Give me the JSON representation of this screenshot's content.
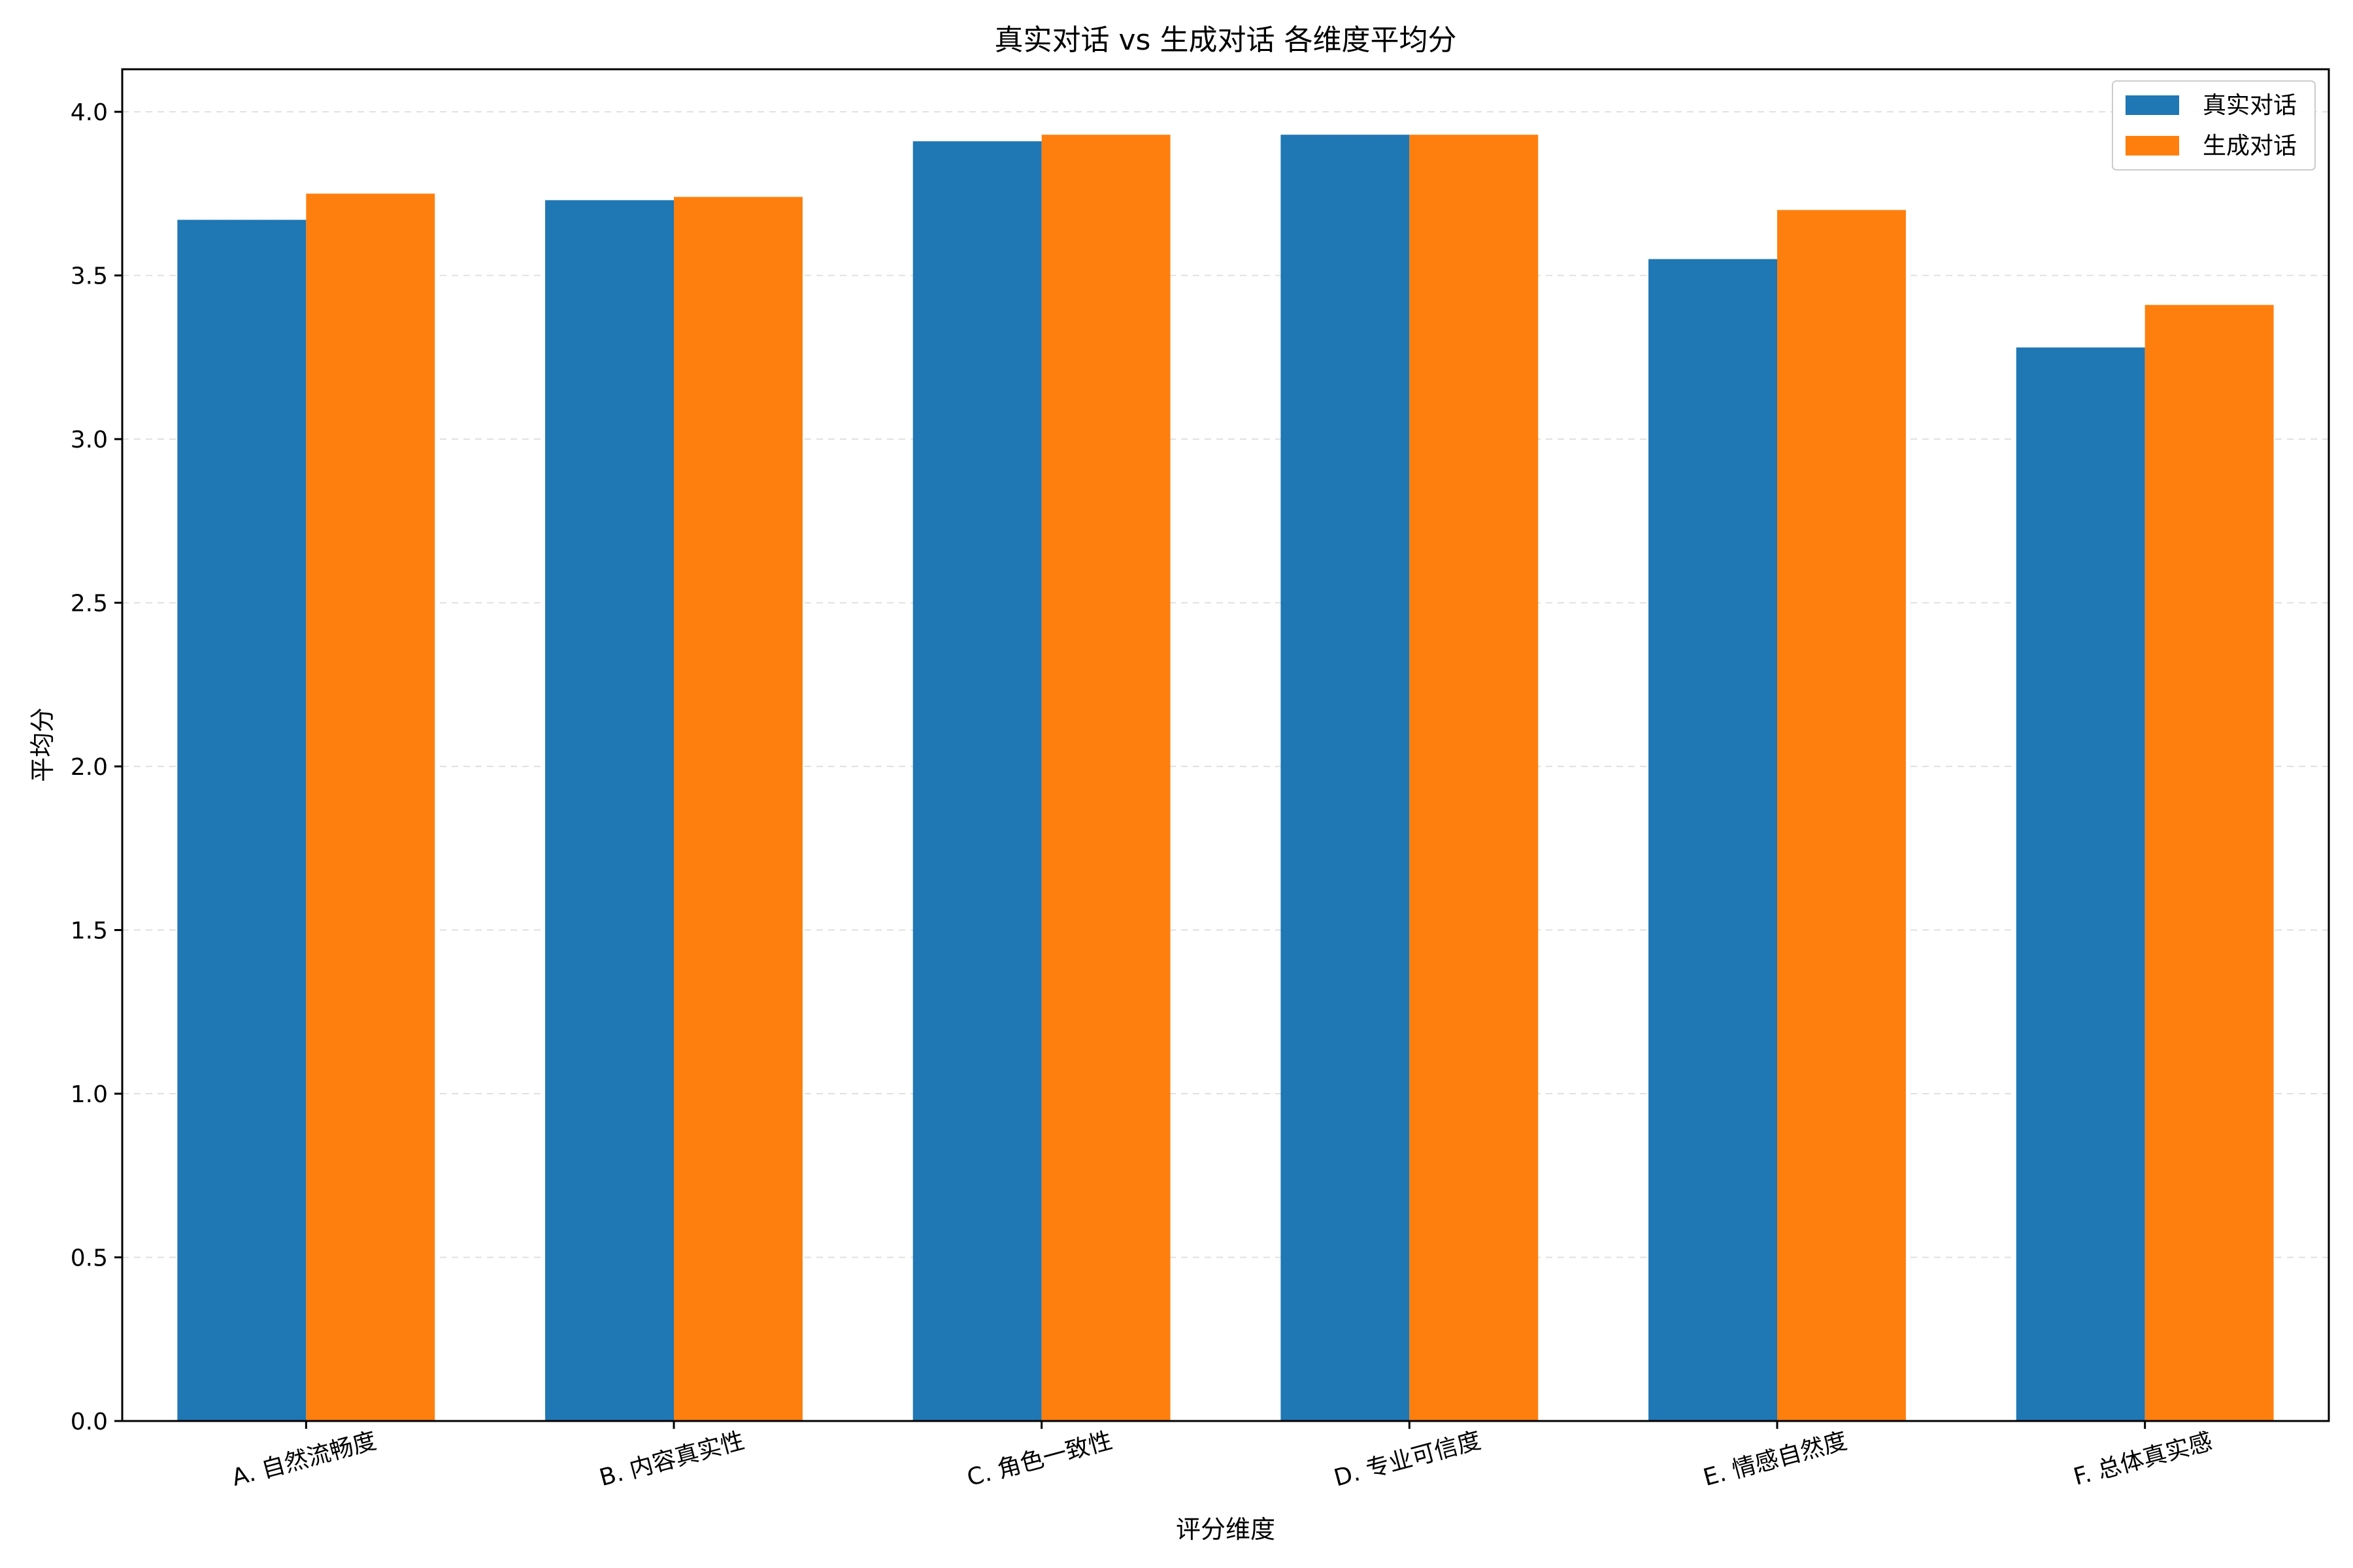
{
  "chart_data": {
    "type": "bar",
    "title": "真实对话 vs 生成对话 各维度平均分",
    "xlabel": "评分维度",
    "ylabel": "平均分",
    "categories": [
      "A. 自然流畅度",
      "B. 内容真实性",
      "C. 角色一致性",
      "D. 专业可信度",
      "E. 情感自然度",
      "F. 总体真实感"
    ],
    "series": [
      {
        "name": "真实对话",
        "color": "#1f77b4",
        "values": [
          3.67,
          3.73,
          3.91,
          3.93,
          3.55,
          3.28
        ]
      },
      {
        "name": "生成对话",
        "color": "#ff7f0e",
        "values": [
          3.75,
          3.74,
          3.93,
          3.93,
          3.7,
          3.41
        ]
      }
    ],
    "ylim": [
      0,
      4.13
    ],
    "yticks": [
      0.0,
      0.5,
      1.0,
      1.5,
      2.0,
      2.5,
      3.0,
      3.5,
      4.0
    ],
    "ytick_labels": [
      "0.0",
      "0.5",
      "1.0",
      "1.5",
      "2.0",
      "2.5",
      "3.0",
      "3.5",
      "4.0"
    ],
    "grid": "y-dashed",
    "legend_position": "top-right"
  }
}
